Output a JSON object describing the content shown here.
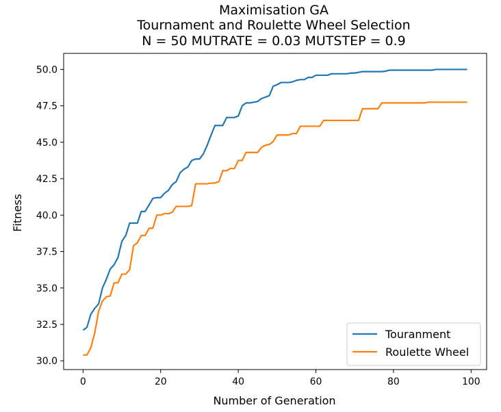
{
  "chart_data": {
    "type": "line",
    "title": [
      "Maximisation GA",
      "Tournament and Roulette Wheel Selection",
      "N = 50 MUTRATE = 0.03 MUTSTEP = 0.9"
    ],
    "xlabel": "Number of Generation",
    "ylabel": "Fitness",
    "xlim": [
      -5,
      104
    ],
    "ylim": [
      29.4,
      51.1
    ],
    "xticks": [
      0,
      20,
      40,
      60,
      80,
      100
    ],
    "yticks": [
      30.0,
      32.5,
      35.0,
      37.5,
      40.0,
      42.5,
      45.0,
      47.5,
      50.0
    ],
    "legend_position": "bottom-right",
    "grid": false,
    "series": [
      {
        "name": "Touranment",
        "color": "#1f77b4",
        "values": [
          32.1,
          32.3,
          33.2,
          33.6,
          33.9,
          35.0,
          35.6,
          36.3,
          36.6,
          37.1,
          38.2,
          38.6,
          39.45,
          39.45,
          39.45,
          40.25,
          40.25,
          40.7,
          41.15,
          41.2,
          41.2,
          41.5,
          41.7,
          42.1,
          42.3,
          42.9,
          43.15,
          43.3,
          43.75,
          43.85,
          43.85,
          44.2,
          44.8,
          45.5,
          46.15,
          46.15,
          46.15,
          46.7,
          46.7,
          46.7,
          46.8,
          47.5,
          47.7,
          47.7,
          47.75,
          47.8,
          48.0,
          48.1,
          48.2,
          48.85,
          48.95,
          49.1,
          49.1,
          49.1,
          49.15,
          49.25,
          49.3,
          49.3,
          49.45,
          49.45,
          49.6,
          49.6,
          49.6,
          49.6,
          49.7,
          49.7,
          49.7,
          49.7,
          49.7,
          49.75,
          49.75,
          49.8,
          49.85,
          49.85,
          49.85,
          49.85,
          49.85,
          49.85,
          49.88,
          49.95,
          49.95,
          49.95,
          49.95,
          49.95,
          49.95,
          49.95,
          49.95,
          49.95,
          49.95,
          49.95,
          49.95,
          50.0,
          50.0,
          50.0,
          50.0,
          50.0,
          50.0,
          50.0,
          50.0,
          50.0
        ]
      },
      {
        "name": "Roulette Wheel",
        "color": "#ff7f0e",
        "values": [
          30.4,
          30.4,
          30.9,
          31.9,
          33.4,
          34.1,
          34.4,
          34.45,
          35.35,
          35.35,
          35.95,
          35.95,
          36.25,
          37.9,
          38.1,
          38.6,
          38.6,
          39.1,
          39.1,
          40.0,
          40.0,
          40.1,
          40.1,
          40.2,
          40.6,
          40.6,
          40.6,
          40.6,
          40.65,
          42.15,
          42.15,
          42.15,
          42.15,
          42.2,
          42.2,
          42.3,
          43.05,
          43.05,
          43.2,
          43.2,
          43.75,
          43.75,
          44.3,
          44.3,
          44.3,
          44.3,
          44.65,
          44.8,
          44.85,
          45.05,
          45.5,
          45.5,
          45.5,
          45.5,
          45.6,
          45.6,
          46.1,
          46.1,
          46.1,
          46.1,
          46.1,
          46.1,
          46.5,
          46.5,
          46.5,
          46.5,
          46.5,
          46.5,
          46.5,
          46.5,
          46.5,
          46.5,
          47.3,
          47.3,
          47.3,
          47.3,
          47.3,
          47.7,
          47.7,
          47.7,
          47.7,
          47.7,
          47.7,
          47.7,
          47.7,
          47.7,
          47.7,
          47.7,
          47.7,
          47.75,
          47.75,
          47.75,
          47.75,
          47.75,
          47.75,
          47.75,
          47.75,
          47.75,
          47.75,
          47.75
        ]
      }
    ]
  }
}
